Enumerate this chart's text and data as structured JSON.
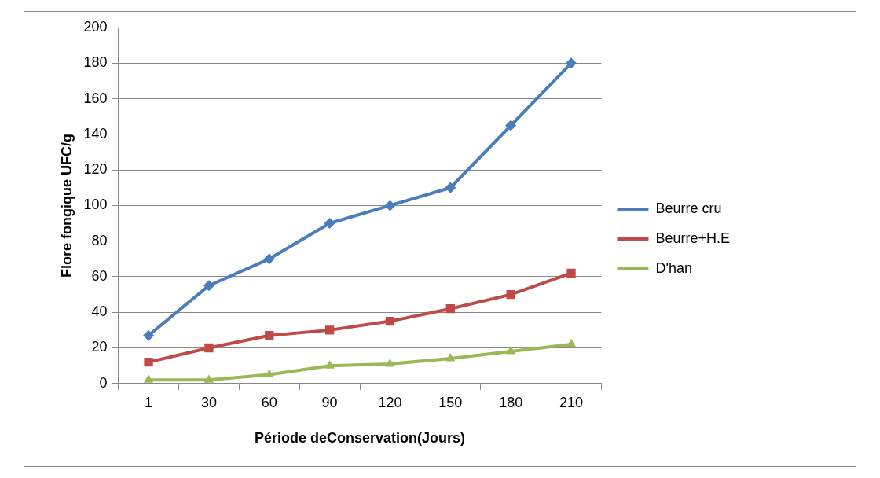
{
  "chart_data": {
    "type": "line",
    "xlabel": "Période deConservation(Jours)",
    "ylabel": "Flore fongique UFC/g",
    "categories": [
      "1",
      "30",
      "60",
      "90",
      "120",
      "150",
      "180",
      "210"
    ],
    "series": [
      {
        "name": "Beurre cru",
        "color": "#4a7ebb",
        "marker": "diamond",
        "values": [
          27,
          55,
          70,
          90,
          100,
          110,
          145,
          180
        ]
      },
      {
        "name": "Beurre+H.E",
        "color": "#be4b48",
        "marker": "square",
        "values": [
          12,
          20,
          27,
          30,
          35,
          42,
          50,
          62
        ]
      },
      {
        "name": "D'han",
        "color": "#98b954",
        "marker": "triangle",
        "values": [
          2,
          2,
          5,
          10,
          11,
          14,
          18,
          22
        ]
      }
    ],
    "ylim": [
      0,
      200
    ],
    "yticks": [
      0,
      20,
      40,
      60,
      80,
      100,
      120,
      140,
      160,
      180,
      200
    ],
    "grid": "y",
    "legend": "right"
  }
}
